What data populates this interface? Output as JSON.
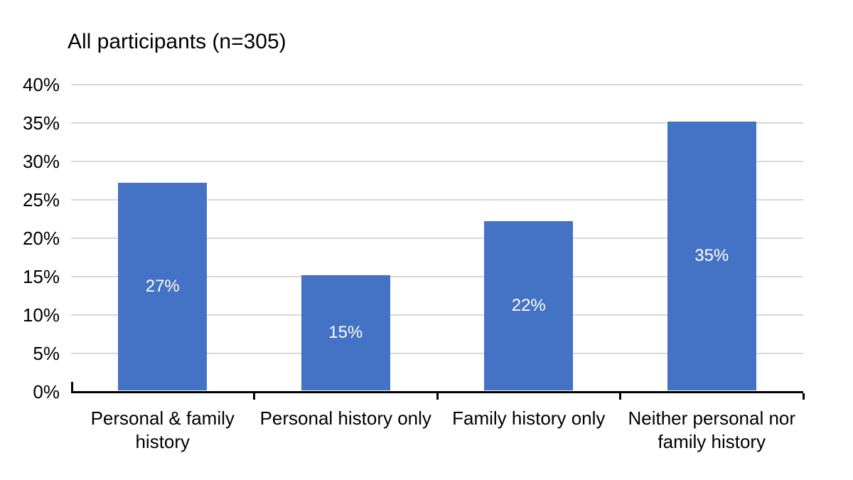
{
  "chart_data": {
    "type": "bar",
    "title": "All participants (n=305)",
    "categories": [
      "Personal & family history",
      "Personal history only",
      "Family history only",
      "Neither personal nor family history"
    ],
    "category_lines": [
      [
        "Personal & family",
        "history"
      ],
      [
        "Personal history only"
      ],
      [
        "Family history only"
      ],
      [
        "Neither personal nor",
        "family history"
      ]
    ],
    "values": [
      27,
      15,
      22,
      35
    ],
    "bar_labels": [
      "27%",
      "15%",
      "22%",
      "35%"
    ],
    "xlabel": "",
    "ylabel": "",
    "ylim": [
      0,
      40
    ],
    "ytick_interval": 5,
    "yticks": [
      {
        "value": 40,
        "label": "40%"
      },
      {
        "value": 35,
        "label": "35%"
      },
      {
        "value": 30,
        "label": "30%"
      },
      {
        "value": 25,
        "label": "25%"
      },
      {
        "value": 20,
        "label": "20%"
      },
      {
        "value": 15,
        "label": "15%"
      },
      {
        "value": 10,
        "label": "10%"
      },
      {
        "value": 5,
        "label": "5%"
      },
      {
        "value": 0,
        "label": "0%"
      }
    ],
    "grid": true,
    "legend": false,
    "colors": {
      "bar": "#4472C4",
      "bar_label": "#FFFFFF",
      "gridline": "#D9D9D9",
      "axis": "#000000",
      "text": "#000000",
      "background": "#FFFFFF"
    }
  }
}
